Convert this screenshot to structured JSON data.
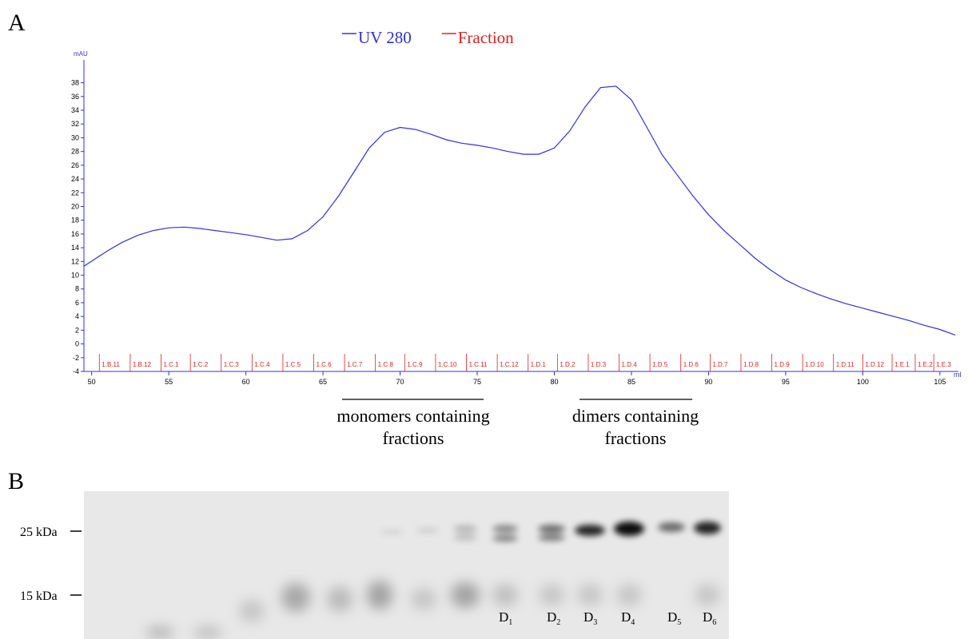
{
  "panels": [
    "A",
    "B"
  ],
  "chart_data": {
    "type": "line",
    "y_label": "mAU",
    "x_unit": "ml",
    "xlim": [
      49.5,
      106.2
    ],
    "ylim": [
      -4,
      39
    ],
    "xticks": [
      50,
      55,
      60,
      65,
      70,
      75,
      80,
      85,
      90,
      95,
      100,
      105
    ],
    "yticks": [
      -4,
      -2,
      0,
      2,
      4,
      6,
      8,
      10,
      12,
      14,
      16,
      18,
      20,
      22,
      24,
      26,
      28,
      30,
      32,
      34,
      36,
      38
    ],
    "series": [
      {
        "name": "UV 280",
        "color": "#3030e0",
        "x": [
          49.5,
          51,
          52,
          53,
          54,
          55,
          56,
          57,
          58,
          59,
          60,
          61,
          62,
          63,
          64,
          65,
          66,
          67,
          68,
          69,
          70,
          71,
          72,
          73,
          74,
          75,
          76,
          77,
          78,
          79,
          80,
          81,
          82,
          83,
          84,
          85,
          86,
          87,
          88,
          89,
          90,
          91,
          92,
          93,
          94,
          95,
          96,
          97,
          98,
          99,
          100,
          101,
          102,
          103,
          104,
          105,
          106
        ],
        "values": [
          11.3,
          13.5,
          14.8,
          15.8,
          16.5,
          16.9,
          17.0,
          16.8,
          16.5,
          16.2,
          15.9,
          15.5,
          15.1,
          15.3,
          16.5,
          18.5,
          21.5,
          25,
          28.5,
          30.8,
          31.5,
          31.2,
          30.5,
          29.7,
          29.2,
          28.9,
          28.5,
          28,
          27.6,
          27.6,
          28.5,
          31,
          34.5,
          37.3,
          37.5,
          35.5,
          31.5,
          27.5,
          24.5,
          21.5,
          18.8,
          16.5,
          14.5,
          12.5,
          10.8,
          9.3,
          8.2,
          7.3,
          6.5,
          5.8,
          5.2,
          4.6,
          4.0,
          3.4,
          2.7,
          2.1,
          1.3
        ]
      }
    ],
    "fractions": {
      "name": "Fraction",
      "color": "#e02020",
      "x": [
        50.5,
        52.5,
        54.5,
        56.4,
        58.4,
        60.4,
        62.4,
        64.4,
        66.4,
        68.4,
        70.3,
        72.3,
        74.3,
        76.3,
        78.3,
        80.2,
        82.2,
        84.2,
        86.2,
        88.2,
        90.1,
        92.1,
        94.1,
        96.1,
        98.1,
        100.0,
        101.9,
        103.4,
        104.6
      ],
      "labels": [
        "1.B.11",
        "1.B.12",
        "1.C.1",
        "1.C.2",
        "1.C.3",
        "1.C.4",
        "1.C.5",
        "1.C.6",
        "1.C.7",
        "1.C.8",
        "1.C.9",
        "1.C.10",
        "1.C.11",
        "1.C.12",
        "1.D.1",
        "1.D.2",
        "1.D.3",
        "1.D.4",
        "1.D.5",
        "1.D.6",
        "1.D.7",
        "1.D.8",
        "1.D.9",
        "1.D.10",
        "1.D.11",
        "1.D.12",
        "1.E.1",
        "1.E.2",
        "1.E.3"
      ]
    },
    "annotations": [
      "monomers containing",
      "fractions",
      "dimers containing",
      "fractions"
    ]
  },
  "gel": {
    "markers": [
      "25 kDa",
      "15 kDa"
    ],
    "lanes": [
      {
        "label": "D",
        "sub": "1"
      },
      {
        "label": "D",
        "sub": "2"
      },
      {
        "label": "D",
        "sub": "3"
      },
      {
        "label": "D",
        "sub": "4"
      },
      {
        "label": "D",
        "sub": "5"
      },
      {
        "label": "D",
        "sub": "6"
      }
    ]
  }
}
